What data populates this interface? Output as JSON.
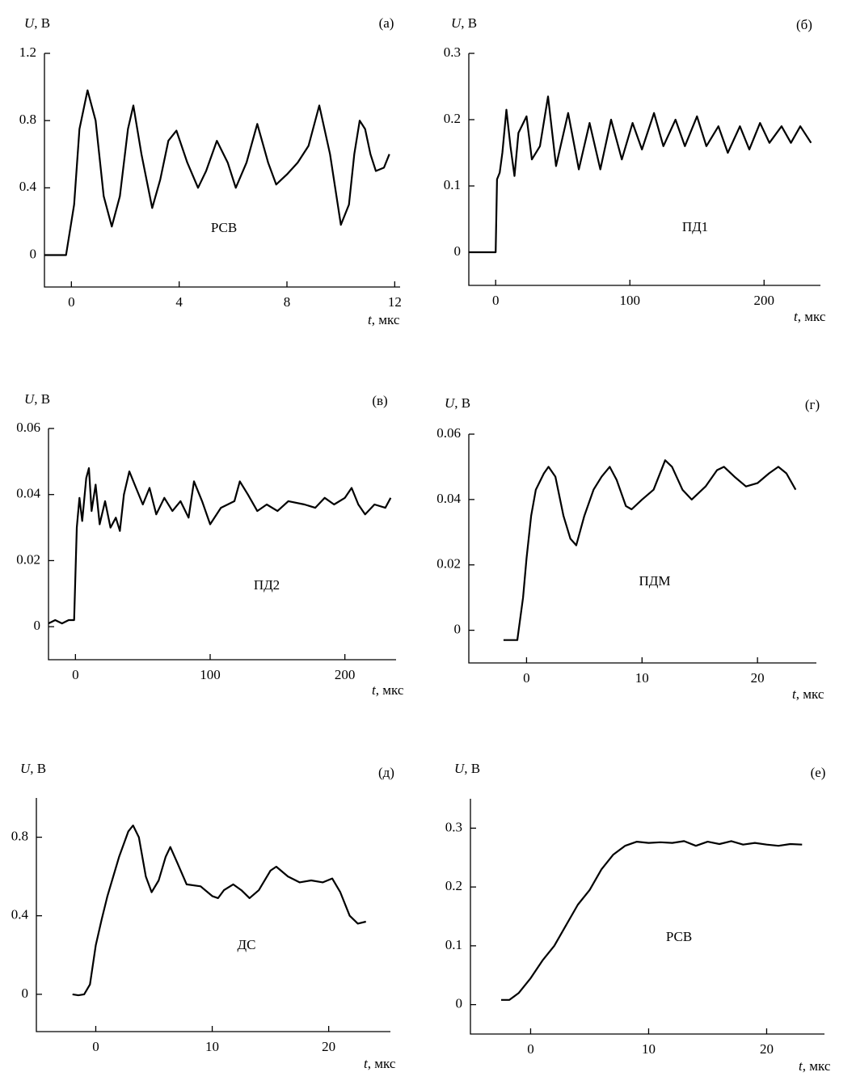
{
  "chart_data": [
    {
      "type": "line",
      "panel": "(а)",
      "ylabel": "U, В",
      "xlabel": "t, мкс",
      "annotation": "РСВ",
      "xlim": [
        -1,
        12.2
      ],
      "ylim": [
        -0.19,
        1.2
      ],
      "xticks": [
        0,
        4,
        8,
        12
      ],
      "yticks": [
        0,
        0.4,
        0.8,
        1.2
      ],
      "x": [
        -1,
        -0.2,
        0.1,
        0.3,
        0.6,
        0.9,
        1.2,
        1.5,
        1.8,
        2.1,
        2.3,
        2.6,
        3.0,
        3.3,
        3.6,
        3.9,
        4.3,
        4.7,
        5.0,
        5.4,
        5.8,
        6.1,
        6.5,
        6.9,
        7.3,
        7.6,
        8.0,
        8.4,
        8.8,
        9.2,
        9.6,
        10.0,
        10.3,
        10.5,
        10.7,
        10.9,
        11.1,
        11.3,
        11.6,
        11.8
      ],
      "values": [
        0,
        0,
        0.3,
        0.75,
        0.98,
        0.8,
        0.35,
        0.17,
        0.35,
        0.75,
        0.89,
        0.6,
        0.28,
        0.45,
        0.68,
        0.74,
        0.55,
        0.4,
        0.5,
        0.68,
        0.55,
        0.4,
        0.55,
        0.78,
        0.55,
        0.42,
        0.48,
        0.55,
        0.65,
        0.89,
        0.6,
        0.18,
        0.3,
        0.6,
        0.8,
        0.75,
        0.6,
        0.5,
        0.52,
        0.6
      ]
    },
    {
      "type": "line",
      "panel": "(б)",
      "ylabel": "U, В",
      "xlabel": "t, мкс",
      "annotation": "ПД1",
      "xlim": [
        -20,
        242
      ],
      "ylim": [
        -0.05,
        0.3
      ],
      "xticks": [
        0,
        100,
        200
      ],
      "yticks": [
        0,
        0.1,
        0.2,
        0.3
      ],
      "x": [
        -20,
        0,
        1,
        3,
        5,
        8,
        11,
        14,
        17,
        23,
        27,
        33,
        39,
        45,
        54,
        62,
        70,
        78,
        86,
        94,
        102,
        109,
        118,
        125,
        134,
        141,
        150,
        157,
        166,
        173,
        182,
        189,
        197,
        204,
        213,
        220,
        227,
        235
      ],
      "values": [
        0,
        0,
        0.11,
        0.12,
        0.15,
        0.215,
        0.16,
        0.115,
        0.18,
        0.205,
        0.14,
        0.16,
        0.235,
        0.13,
        0.21,
        0.125,
        0.195,
        0.125,
        0.2,
        0.14,
        0.195,
        0.155,
        0.21,
        0.16,
        0.2,
        0.16,
        0.205,
        0.16,
        0.19,
        0.15,
        0.19,
        0.155,
        0.195,
        0.165,
        0.19,
        0.165,
        0.19,
        0.165
      ]
    },
    {
      "type": "line",
      "panel": "(в)",
      "ylabel": "U, В",
      "xlabel": "t, мкс",
      "annotation": "ПД2",
      "xlim": [
        -20,
        238
      ],
      "ylim": [
        -0.01,
        0.06
      ],
      "xticks": [
        0,
        100,
        200
      ],
      "yticks": [
        0,
        0.02,
        0.04,
        0.06
      ],
      "x": [
        -20,
        -15,
        -10,
        -5,
        -1,
        1,
        3,
        5,
        8,
        10,
        12,
        15,
        18,
        22,
        26,
        30,
        33,
        36,
        40,
        45,
        50,
        55,
        60,
        66,
        72,
        78,
        84,
        88,
        94,
        100,
        108,
        113,
        118,
        122,
        128,
        135,
        142,
        150,
        158,
        170,
        178,
        185,
        192,
        200,
        205,
        210,
        215,
        222,
        230,
        234
      ],
      "values": [
        0.001,
        0.002,
        0.001,
        0.002,
        0.002,
        0.03,
        0.039,
        0.032,
        0.045,
        0.048,
        0.035,
        0.043,
        0.031,
        0.038,
        0.03,
        0.033,
        0.029,
        0.04,
        0.047,
        0.042,
        0.037,
        0.042,
        0.034,
        0.039,
        0.035,
        0.038,
        0.033,
        0.044,
        0.038,
        0.031,
        0.036,
        0.037,
        0.038,
        0.044,
        0.04,
        0.035,
        0.037,
        0.035,
        0.038,
        0.037,
        0.036,
        0.039,
        0.037,
        0.039,
        0.042,
        0.037,
        0.034,
        0.037,
        0.036,
        0.039
      ]
    },
    {
      "type": "line",
      "panel": "(г)",
      "ylabel": "U, В",
      "xlabel": "t, мкс",
      "annotation": "ПДМ",
      "xlim": [
        -5,
        25.1
      ],
      "ylim": [
        -0.01,
        0.06
      ],
      "xticks": [
        0,
        10,
        20
      ],
      "yticks": [
        0,
        0.02,
        0.04,
        0.06
      ],
      "x": [
        -2,
        -0.8,
        -0.3,
        0,
        0.4,
        0.8,
        1.5,
        1.9,
        2.5,
        3.2,
        3.8,
        4.3,
        5,
        5.8,
        6.5,
        7.2,
        7.8,
        8.6,
        9.1,
        10,
        11,
        12,
        12.6,
        13.5,
        14.3,
        15.5,
        16.5,
        17.1,
        18,
        19,
        20,
        21,
        21.8,
        22.5,
        23.3
      ],
      "values": [
        -0.003,
        -0.003,
        0.01,
        0.022,
        0.035,
        0.043,
        0.048,
        0.05,
        0.047,
        0.035,
        0.028,
        0.026,
        0.035,
        0.043,
        0.047,
        0.05,
        0.046,
        0.038,
        0.037,
        0.04,
        0.043,
        0.052,
        0.05,
        0.043,
        0.04,
        0.044,
        0.049,
        0.05,
        0.047,
        0.044,
        0.045,
        0.048,
        0.05,
        0.048,
        0.043
      ]
    },
    {
      "type": "line",
      "panel": "(д)",
      "ylabel": "U, В",
      "xlabel": "t, мкс",
      "annotation": "ДС",
      "xlim": [
        -5.1,
        25.3
      ],
      "ylim": [
        -0.19,
        1.0
      ],
      "xticks": [
        0,
        10,
        20
      ],
      "yticks": [
        0,
        0.4,
        0.8
      ],
      "x": [
        -2,
        -1.5,
        -1,
        -0.5,
        0,
        0.5,
        1,
        2,
        2.8,
        3.2,
        3.7,
        4.3,
        4.8,
        5.4,
        6,
        6.4,
        7,
        7.8,
        9,
        10,
        10.5,
        11,
        11.8,
        12.5,
        13.2,
        14,
        15,
        15.5,
        16.5,
        17.5,
        18.5,
        19.5,
        20.3,
        21,
        21.8,
        22.5,
        23.2
      ],
      "values": [
        0,
        -0.005,
        0,
        0.05,
        0.25,
        0.38,
        0.5,
        0.7,
        0.83,
        0.86,
        0.8,
        0.6,
        0.52,
        0.58,
        0.7,
        0.75,
        0.67,
        0.56,
        0.55,
        0.5,
        0.49,
        0.53,
        0.56,
        0.53,
        0.49,
        0.53,
        0.63,
        0.65,
        0.6,
        0.57,
        0.58,
        0.57,
        0.59,
        0.52,
        0.4,
        0.36,
        0.37
      ]
    },
    {
      "type": "line",
      "panel": "(е)",
      "ylabel": "U, В",
      "xlabel": "t, мкс",
      "annotation": "РСВ",
      "xlim": [
        -5.1,
        24.9
      ],
      "ylim": [
        -0.05,
        0.35
      ],
      "xticks": [
        0,
        10,
        20
      ],
      "yticks": [
        0,
        0.1,
        0.2,
        0.3
      ],
      "x": [
        -2.5,
        -1.8,
        -1,
        0,
        1,
        2,
        3,
        4,
        5,
        6,
        7,
        8,
        9,
        10,
        11,
        12,
        13,
        14,
        15,
        16,
        17,
        18,
        19,
        20,
        21,
        22,
        23
      ],
      "values": [
        0.008,
        0.008,
        0.02,
        0.045,
        0.075,
        0.1,
        0.135,
        0.17,
        0.195,
        0.23,
        0.255,
        0.27,
        0.277,
        0.275,
        0.276,
        0.275,
        0.278,
        0.27,
        0.277,
        0.273,
        0.278,
        0.272,
        0.275,
        0.272,
        0.27,
        0.273,
        0.272
      ]
    }
  ]
}
